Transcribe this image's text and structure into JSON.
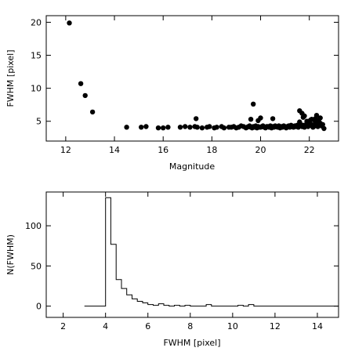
{
  "chart_data": [
    {
      "type": "scatter",
      "xlabel": "Magnitude",
      "ylabel": "FWHM [pixel]",
      "xlim": [
        11.2,
        23.2
      ],
      "ylim": [
        2,
        21
      ],
      "xticks": [
        12,
        14,
        16,
        18,
        20,
        22
      ],
      "yticks": [
        5,
        10,
        15,
        20
      ],
      "x": [
        12.15,
        12.62,
        12.8,
        13.1,
        14.5,
        15.1,
        15.3,
        15.8,
        16.0,
        16.2,
        16.7,
        16.9,
        17.1,
        17.3,
        17.4,
        17.6,
        17.8,
        17.9,
        18.1,
        18.2,
        18.4,
        18.5,
        18.7,
        18.8,
        18.9,
        19.0,
        19.1,
        19.2,
        19.3,
        19.4,
        19.45,
        19.5,
        19.55,
        19.6,
        19.65,
        19.7,
        19.75,
        19.8,
        19.85,
        19.9,
        19.95,
        20.0,
        20.05,
        20.1,
        20.15,
        20.2,
        20.25,
        20.3,
        20.35,
        20.4,
        20.45,
        20.5,
        20.55,
        20.6,
        20.65,
        20.7,
        20.75,
        20.8,
        20.85,
        20.9,
        20.95,
        21.0,
        21.05,
        21.1,
        21.15,
        21.2,
        21.25,
        21.3,
        21.35,
        21.4,
        21.45,
        21.5,
        21.55,
        21.6,
        21.65,
        21.7,
        21.75,
        21.8,
        21.85,
        21.9,
        21.95,
        22.0,
        22.05,
        22.1,
        22.15,
        22.2,
        22.25,
        22.3,
        22.35,
        22.4,
        22.45,
        22.5,
        22.55,
        22.6,
        17.35,
        19.6,
        19.7,
        19.9,
        20.0,
        20.5,
        21.6,
        21.7,
        21.8,
        21.9,
        22.1,
        22.3,
        22.45,
        21.6,
        21.75,
        22.2,
        22.35,
        21.9,
        22.0,
        22.4,
        22.05,
        22.25
      ],
      "y": [
        19.9,
        10.7,
        8.9,
        6.4,
        4.1,
        4.1,
        4.2,
        4.0,
        4.0,
        4.1,
        4.1,
        4.2,
        4.1,
        4.2,
        4.1,
        4.0,
        4.1,
        4.2,
        4.0,
        4.1,
        4.2,
        4.0,
        4.1,
        4.1,
        4.2,
        4.0,
        4.1,
        4.3,
        4.2,
        4.0,
        4.1,
        4.2,
        4.3,
        4.1,
        4.0,
        4.2,
        4.1,
        4.3,
        4.0,
        4.2,
        4.1,
        4.1,
        4.2,
        4.3,
        4.1,
        4.0,
        4.2,
        4.2,
        4.1,
        4.3,
        4.0,
        4.2,
        4.1,
        4.3,
        4.2,
        4.1,
        4.3,
        4.0,
        4.2,
        4.1,
        4.3,
        4.2,
        4.0,
        4.2,
        4.3,
        4.1,
        4.4,
        4.2,
        4.1,
        4.3,
        4.2,
        4.4,
        4.1,
        4.3,
        4.5,
        4.2,
        4.4,
        4.1,
        4.3,
        4.5,
        4.2,
        4.4,
        4.6,
        4.3,
        4.1,
        4.5,
        4.3,
        4.6,
        4.2,
        4.4,
        4.7,
        4.3,
        4.5,
        3.9,
        5.4,
        5.3,
        7.6,
        5.1,
        5.5,
        5.4,
        6.6,
        6.2,
        5.8,
        5.0,
        5.3,
        5.9,
        5.5,
        4.9,
        5.6,
        5.2,
        5.1,
        4.8,
        5.0,
        4.9,
        5.2,
        5.4
      ]
    },
    {
      "type": "line",
      "xlabel": "FWHM [pixel]",
      "ylabel": "N(FWHM)",
      "xlim": [
        1.2,
        15
      ],
      "ylim": [
        -14,
        142
      ],
      "xticks": [
        2,
        4,
        6,
        8,
        10,
        12,
        14
      ],
      "yticks": [
        0,
        50,
        100
      ],
      "bin_edges": [
        3.0,
        3.25,
        3.5,
        3.75,
        4.0,
        4.25,
        4.5,
        4.75,
        5.0,
        5.25,
        5.5,
        5.75,
        6.0,
        6.25,
        6.5,
        6.75,
        7.0,
        7.25,
        7.5,
        7.75,
        8.0,
        8.25,
        8.5,
        8.75,
        9.0,
        9.25,
        9.5,
        9.75,
        10.0,
        10.25,
        10.5,
        10.75,
        11.0,
        11.25,
        11.5,
        11.75,
        12.0,
        12.25,
        12.5,
        12.75,
        13.0,
        13.25,
        13.5,
        13.75,
        14.0,
        14.25,
        14.5,
        14.75,
        15.0
      ],
      "counts": [
        0,
        0,
        0,
        0,
        135,
        77,
        33,
        22,
        14,
        9,
        6,
        4,
        2,
        1,
        3,
        1,
        0,
        1,
        0,
        1,
        0,
        0,
        0,
        2,
        0,
        0,
        0,
        0,
        0,
        1,
        0,
        2,
        0,
        0,
        0,
        0,
        0,
        0,
        0,
        0,
        0,
        0,
        0,
        0,
        0,
        0,
        0,
        0
      ]
    }
  ]
}
